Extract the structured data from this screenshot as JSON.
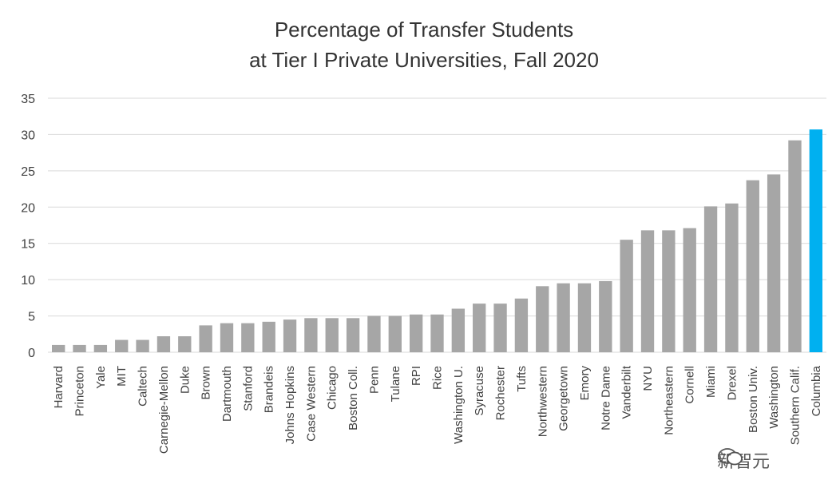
{
  "chart_data": {
    "type": "bar",
    "title": "Percentage of Transfer Students",
    "subtitle": "at Tier I Private Universities,  Fall 2020",
    "xlabel": "",
    "ylabel": "",
    "ylim": [
      0,
      35
    ],
    "yticks": [
      0,
      5,
      10,
      15,
      20,
      25,
      30,
      35
    ],
    "grid": true,
    "categories": [
      "Harvard",
      "Princeton",
      "Yale",
      "MIT",
      "Caltech",
      "Carnegie-Mellon",
      "Duke",
      "Brown",
      "Dartmouth",
      "Stanford",
      "Brandeis",
      "Johns Hopkins",
      "Case Western",
      "Chicago",
      "Boston Coll.",
      "Penn",
      "Tulane",
      "RPI",
      "Rice",
      "Washington U.",
      "Syracuse",
      "Rochester",
      "Tufts",
      "Northwestern",
      "Georgetown",
      "Emory",
      "Notre Dame",
      "Vanderbilt",
      "NYU",
      "Northeastern",
      "Cornell",
      "Miami",
      "Drexel",
      "Boston Univ.",
      "Washington",
      "Southern Calif.",
      "Columbia"
    ],
    "values": [
      1.0,
      1.0,
      1.0,
      1.7,
      1.7,
      2.2,
      2.2,
      3.7,
      4.0,
      4.0,
      4.2,
      4.5,
      4.7,
      4.7,
      4.7,
      5.0,
      5.0,
      5.2,
      5.2,
      6.0,
      6.7,
      6.7,
      7.4,
      9.1,
      9.5,
      9.5,
      9.8,
      15.5,
      16.8,
      16.8,
      17.1,
      20.1,
      20.5,
      23.7,
      24.5,
      29.2,
      30.7
    ],
    "colors": {
      "default": "#a6a6a6",
      "highlight": "#00b0f0",
      "grid": "#d9d9d9"
    },
    "highlight_index": 36
  },
  "watermark": {
    "text": "新智元",
    "icon": "wechat-icon"
  }
}
